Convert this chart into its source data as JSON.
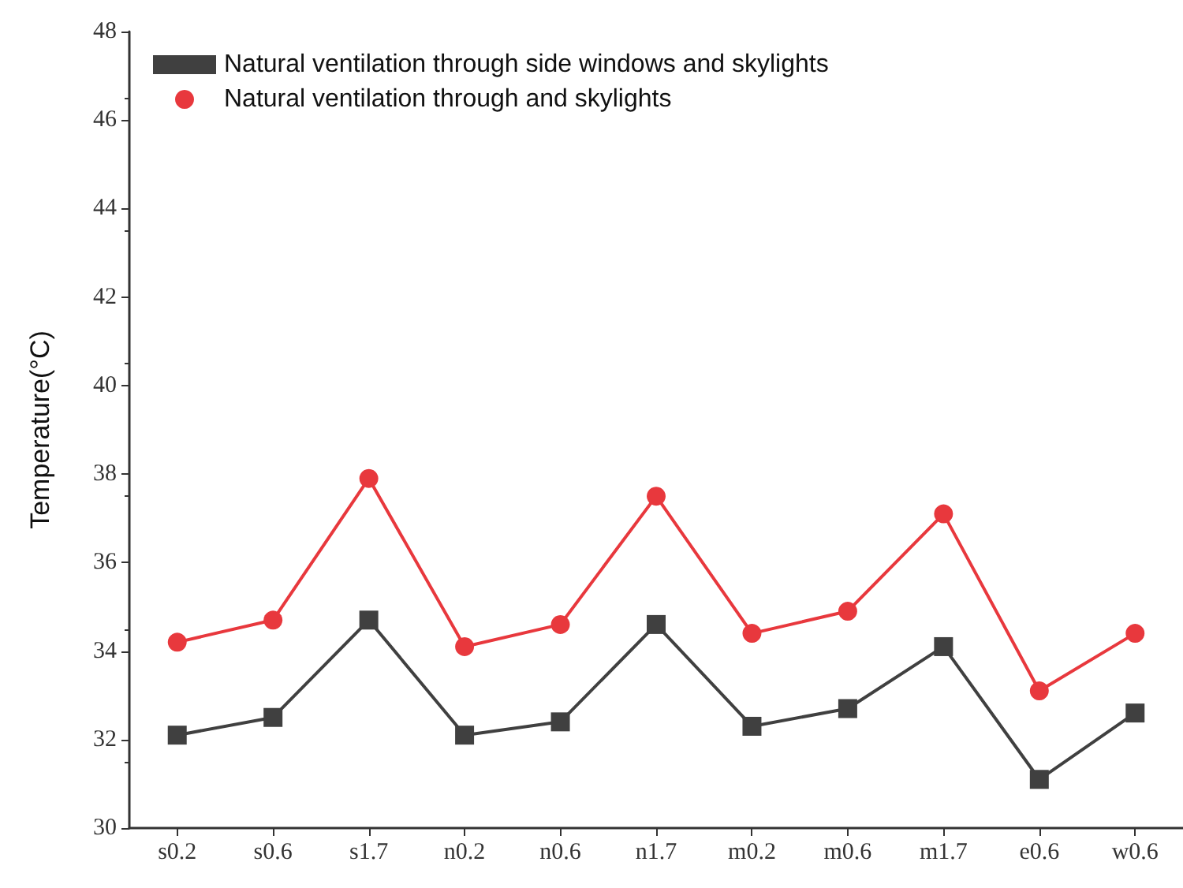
{
  "chart_data": {
    "type": "line",
    "ylabel": "Temperature(°C)",
    "categories": [
      "s0.2",
      "s0.6",
      "s1.7",
      "n0.2",
      "n0.6",
      "n1.7",
      "m0.2",
      "m0.6",
      "m1.7",
      "e0.6",
      "w0.6"
    ],
    "series": [
      {
        "name": "Natural ventilation through side windows and skylights",
        "color": "#404040",
        "marker": "square",
        "values": [
          32.1,
          32.5,
          34.7,
          32.1,
          32.4,
          34.6,
          32.3,
          32.7,
          34.1,
          31.1,
          32.6
        ]
      },
      {
        "name": "Natural ventilation through and skylights",
        "color": "#e8383d",
        "marker": "circle",
        "values": [
          34.2,
          34.7,
          37.9,
          34.1,
          34.6,
          37.5,
          34.4,
          34.9,
          37.1,
          33.1,
          34.4
        ]
      }
    ],
    "ylim": [
      30,
      48
    ],
    "yticks": [
      30,
      32,
      34,
      36,
      38,
      40,
      42,
      44,
      46,
      48
    ],
    "grid": false,
    "legend": "top left",
    "line_style": "solid"
  }
}
